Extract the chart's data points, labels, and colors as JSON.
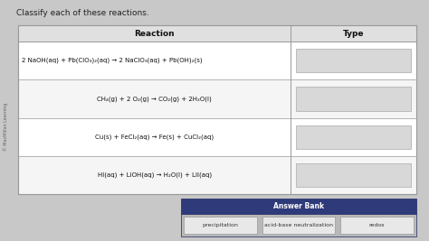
{
  "title": "Classify each of these reactions.",
  "col_headers": [
    "Reaction",
    "Type"
  ],
  "reactions": [
    "2 NaOH(aq) + Pb(ClO₃)₂(aq) → 2 NaClO₃(aq) + Pb(OH)₂(s)",
    "CH₄(g) + 2 O₂(g) → CO₂(g) + 2H₂O(l)",
    "Cu(s) + FeCl₂(aq) → Fe(s) + CuCl₂(aq)",
    "HI(aq) + LiOH(aq) → H₂O(l) + LiI(aq)"
  ],
  "answer_bank_label": "Answer Bank",
  "answer_options": [
    "precipitation",
    "acid-base neutralization",
    "redox"
  ],
  "bg_color": "#c8c8c8",
  "table_bg": "#ffffff",
  "header_bg": "#e0e0e0",
  "row_alt_bg": "#f5f5f5",
  "answer_bank_header_bg": "#2e3a7a",
  "answer_bank_header_fg": "#ffffff",
  "answer_option_bg": "#e8e8e8",
  "answer_option_fg": "#333333",
  "type_box_bg": "#d8d8d8",
  "watermark": "© MacMillan Learning",
  "border_color": "#999999",
  "title_fontsize": 6.5,
  "reaction_fontsize": 5.0,
  "header_fontsize": 6.5,
  "ab_fontsize": 5.5,
  "opt_fontsize": 4.5
}
